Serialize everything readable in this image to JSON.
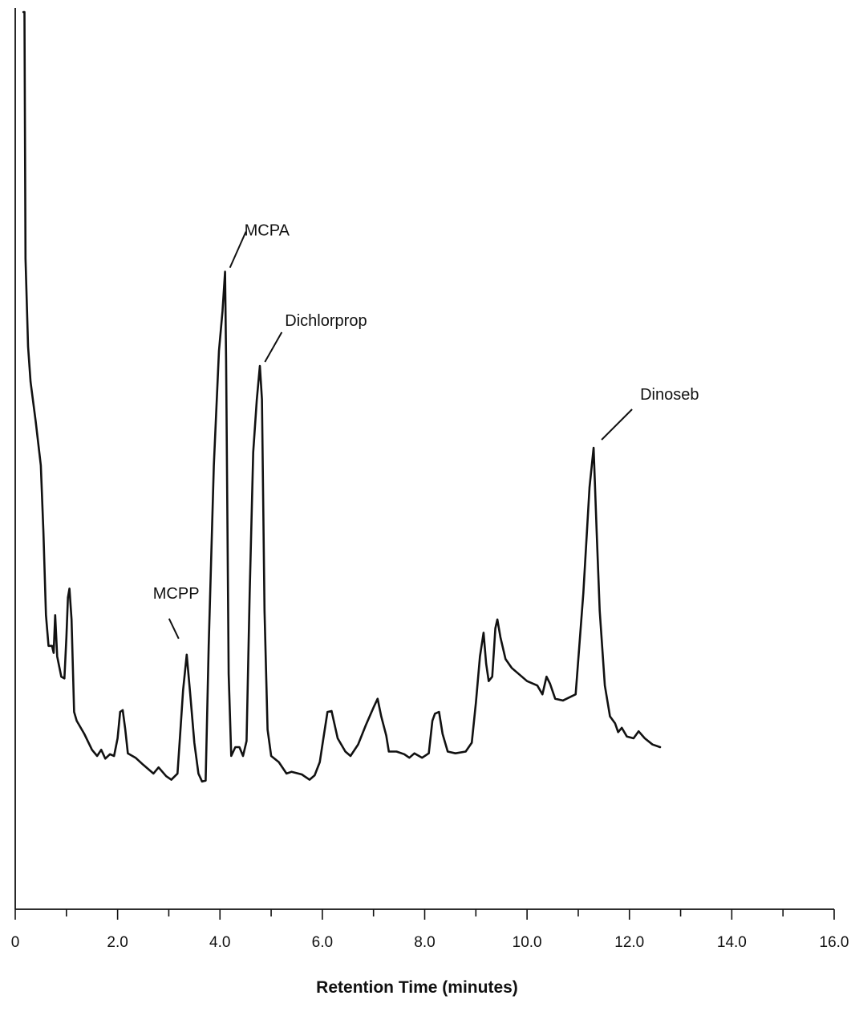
{
  "chart_data": {
    "type": "line",
    "xlabel": "Retention Time (minutes)",
    "ylabel": "",
    "xlim": [
      0,
      16
    ],
    "ylim": [
      0,
      1
    ],
    "grid": false,
    "x_ticks": [
      0,
      2,
      4,
      6,
      8,
      10,
      12,
      14,
      16
    ],
    "x_minor_ticks": [
      1,
      3,
      5,
      7,
      9,
      11,
      13,
      15
    ],
    "x_tick_labels": [
      "0",
      "2.0",
      "4.0",
      "6.0",
      "8.0",
      "10.0",
      "12.0",
      "14.0",
      "16.0"
    ],
    "series": [
      {
        "points": [
          [
            0.16,
            1.0
          ],
          [
            0.18,
            1.0
          ],
          [
            0.2,
            0.72
          ],
          [
            0.25,
            0.62
          ],
          [
            0.3,
            0.58
          ],
          [
            0.4,
            0.535
          ],
          [
            0.5,
            0.485
          ],
          [
            0.55,
            0.41
          ],
          [
            0.6,
            0.315
          ],
          [
            0.65,
            0.28
          ],
          [
            0.72,
            0.28
          ],
          [
            0.75,
            0.272
          ],
          [
            0.78,
            0.315
          ],
          [
            0.82,
            0.268
          ],
          [
            0.9,
            0.245
          ],
          [
            0.96,
            0.243
          ],
          [
            1.0,
            0.29
          ],
          [
            1.03,
            0.335
          ],
          [
            1.06,
            0.345
          ],
          [
            1.1,
            0.31
          ],
          [
            1.15,
            0.205
          ],
          [
            1.2,
            0.195
          ],
          [
            1.35,
            0.18
          ],
          [
            1.5,
            0.162
          ],
          [
            1.6,
            0.155
          ],
          [
            1.68,
            0.162
          ],
          [
            1.76,
            0.152
          ],
          [
            1.85,
            0.157
          ],
          [
            1.93,
            0.155
          ],
          [
            2.0,
            0.175
          ],
          [
            2.05,
            0.205
          ],
          [
            2.1,
            0.207
          ],
          [
            2.15,
            0.185
          ],
          [
            2.2,
            0.158
          ],
          [
            2.35,
            0.153
          ],
          [
            2.5,
            0.145
          ],
          [
            2.6,
            0.14
          ],
          [
            2.7,
            0.135
          ],
          [
            2.8,
            0.142
          ],
          [
            2.95,
            0.132
          ],
          [
            3.05,
            0.128
          ],
          [
            3.17,
            0.135
          ],
          [
            3.22,
            0.178
          ],
          [
            3.28,
            0.23
          ],
          [
            3.35,
            0.27
          ],
          [
            3.42,
            0.225
          ],
          [
            3.5,
            0.17
          ],
          [
            3.58,
            0.135
          ],
          [
            3.65,
            0.126
          ],
          [
            3.72,
            0.127
          ],
          [
            3.78,
            0.28
          ],
          [
            3.88,
            0.485
          ],
          [
            3.98,
            0.615
          ],
          [
            4.05,
            0.66
          ],
          [
            4.1,
            0.705
          ],
          [
            4.12,
            0.605
          ],
          [
            4.17,
            0.248
          ],
          [
            4.22,
            0.155
          ],
          [
            4.3,
            0.165
          ],
          [
            4.38,
            0.165
          ],
          [
            4.45,
            0.155
          ],
          [
            4.52,
            0.172
          ],
          [
            4.58,
            0.34
          ],
          [
            4.65,
            0.5
          ],
          [
            4.72,
            0.56
          ],
          [
            4.78,
            0.598
          ],
          [
            4.82,
            0.56
          ],
          [
            4.87,
            0.32
          ],
          [
            4.93,
            0.185
          ],
          [
            5.0,
            0.155
          ],
          [
            5.15,
            0.148
          ],
          [
            5.3,
            0.135
          ],
          [
            5.4,
            0.137
          ],
          [
            5.6,
            0.134
          ],
          [
            5.75,
            0.128
          ],
          [
            5.85,
            0.133
          ],
          [
            5.95,
            0.148
          ],
          [
            6.02,
            0.175
          ],
          [
            6.1,
            0.205
          ],
          [
            6.18,
            0.206
          ],
          [
            6.3,
            0.175
          ],
          [
            6.45,
            0.16
          ],
          [
            6.55,
            0.155
          ],
          [
            6.7,
            0.168
          ],
          [
            6.85,
            0.19
          ],
          [
            7.0,
            0.21
          ],
          [
            7.08,
            0.22
          ],
          [
            7.15,
            0.2
          ],
          [
            7.25,
            0.178
          ],
          [
            7.3,
            0.16
          ],
          [
            7.45,
            0.16
          ],
          [
            7.6,
            0.157
          ],
          [
            7.7,
            0.153
          ],
          [
            7.8,
            0.158
          ],
          [
            7.95,
            0.153
          ],
          [
            8.08,
            0.158
          ],
          [
            8.15,
            0.195
          ],
          [
            8.2,
            0.203
          ],
          [
            8.28,
            0.205
          ],
          [
            8.35,
            0.18
          ],
          [
            8.45,
            0.16
          ],
          [
            8.6,
            0.158
          ],
          [
            8.8,
            0.16
          ],
          [
            8.92,
            0.17
          ],
          [
            9.0,
            0.215
          ],
          [
            9.08,
            0.268
          ],
          [
            9.15,
            0.295
          ],
          [
            9.2,
            0.26
          ],
          [
            9.25,
            0.24
          ],
          [
            9.32,
            0.245
          ],
          [
            9.38,
            0.3
          ],
          [
            9.42,
            0.31
          ],
          [
            9.48,
            0.29
          ],
          [
            9.58,
            0.265
          ],
          [
            9.7,
            0.255
          ],
          [
            9.9,
            0.245
          ],
          [
            10.0,
            0.24
          ],
          [
            10.2,
            0.235
          ],
          [
            10.3,
            0.225
          ],
          [
            10.38,
            0.245
          ],
          [
            10.45,
            0.237
          ],
          [
            10.55,
            0.22
          ],
          [
            10.7,
            0.218
          ],
          [
            10.95,
            0.225
          ],
          [
            11.1,
            0.34
          ],
          [
            11.22,
            0.46
          ],
          [
            11.3,
            0.505
          ],
          [
            11.36,
            0.41
          ],
          [
            11.42,
            0.32
          ],
          [
            11.52,
            0.235
          ],
          [
            11.62,
            0.2
          ],
          [
            11.72,
            0.192
          ],
          [
            11.78,
            0.182
          ],
          [
            11.85,
            0.187
          ],
          [
            11.95,
            0.177
          ],
          [
            12.08,
            0.175
          ],
          [
            12.18,
            0.183
          ],
          [
            12.3,
            0.175
          ],
          [
            12.45,
            0.168
          ],
          [
            12.6,
            0.165
          ]
        ]
      }
    ],
    "annotations": [
      {
        "label": "MCPP",
        "x": 3.35,
        "y": 0.27
      },
      {
        "label": "MCPA",
        "x": 4.1,
        "y": 0.705
      },
      {
        "label": "Dichlorprop",
        "x": 4.8,
        "y": 0.598
      },
      {
        "label": "Dinoseb",
        "x": 11.3,
        "y": 0.505
      }
    ]
  }
}
